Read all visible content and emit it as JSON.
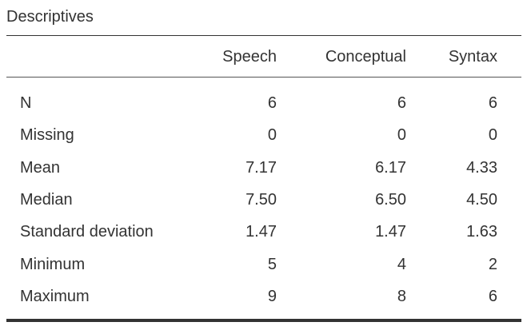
{
  "title": "Descriptives",
  "table": {
    "columns": [
      "Speech",
      "Conceptual",
      "Syntax"
    ],
    "rows": [
      {
        "label": "N",
        "values": [
          "6",
          "6",
          "6"
        ]
      },
      {
        "label": "Missing",
        "values": [
          "0",
          "0",
          "0"
        ]
      },
      {
        "label": "Mean",
        "values": [
          "7.17",
          "6.17",
          "4.33"
        ]
      },
      {
        "label": "Median",
        "values": [
          "7.50",
          "6.50",
          "4.50"
        ]
      },
      {
        "label": "Standard deviation",
        "values": [
          "1.47",
          "1.47",
          "1.63"
        ]
      },
      {
        "label": "Minimum",
        "values": [
          "5",
          "4",
          "2"
        ]
      },
      {
        "label": "Maximum",
        "values": [
          "9",
          "8",
          "6"
        ]
      }
    ]
  }
}
